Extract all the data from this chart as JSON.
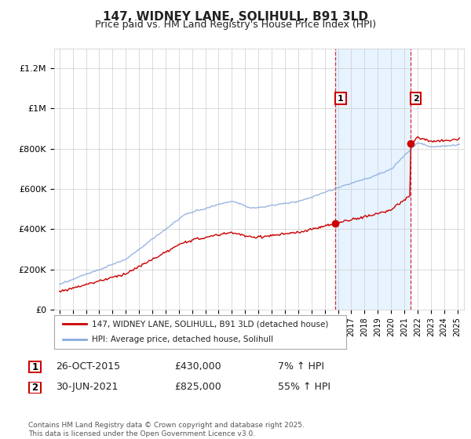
{
  "title": "147, WIDNEY LANE, SOLIHULL, B91 3LD",
  "subtitle": "Price paid vs. HM Land Registry's House Price Index (HPI)",
  "ylabel_ticks": [
    "£0",
    "£200K",
    "£400K",
    "£600K",
    "£800K",
    "£1M",
    "£1.2M"
  ],
  "ylim": [
    0,
    1300000
  ],
  "xlim_start": 1994.6,
  "xlim_end": 2025.5,
  "hpi_color": "#88aadd",
  "price_color": "#cc0000",
  "sale1_x": 2015.82,
  "sale1_y": 430000,
  "sale2_x": 2021.5,
  "sale2_y": 825000,
  "annotation1_label": "1",
  "annotation2_label": "2",
  "legend_line1": "147, WIDNEY LANE, SOLIHULL, B91 3LD (detached house)",
  "legend_line2": "HPI: Average price, detached house, Solihull",
  "table_row1": [
    "1",
    "26-OCT-2015",
    "£430,000",
    "7% ↑ HPI"
  ],
  "table_row2": [
    "2",
    "30-JUN-2021",
    "£825,000",
    "55% ↑ HPI"
  ],
  "footer": "Contains HM Land Registry data © Crown copyright and database right 2025.\nThis data is licensed under the Open Government Licence v3.0.",
  "shade_x1": 2015.82,
  "shade_x2": 2021.5,
  "background_color": "#ffffff",
  "shade_color": "#ddeeff"
}
